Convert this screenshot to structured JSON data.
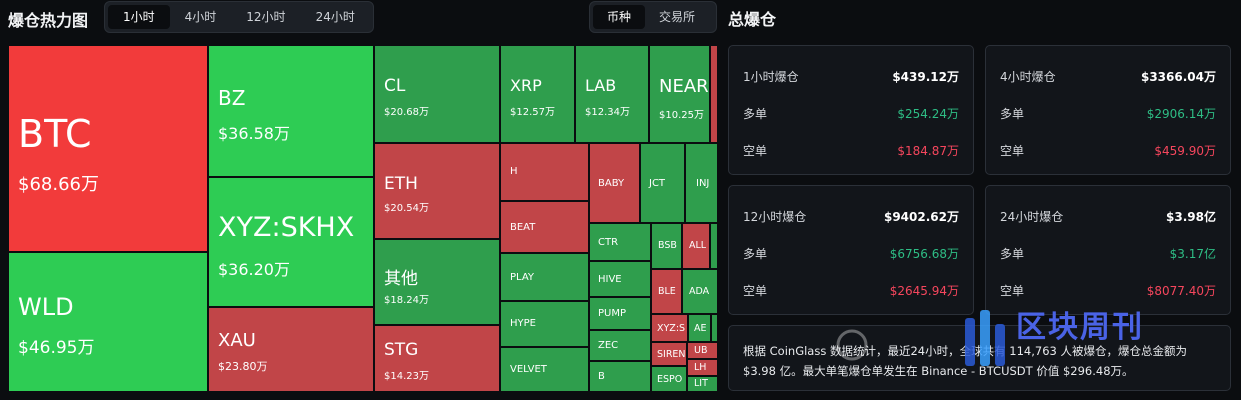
{
  "header": {
    "title": "爆仓热力图",
    "time_tabs": [
      "1小时",
      "4小时",
      "12小时",
      "24小时"
    ],
    "group_tabs": [
      "币种",
      "交易所"
    ]
  },
  "treemap": {
    "cells": [
      {
        "name": "BTC",
        "value": "$68.66万"
      },
      {
        "name": "WLD",
        "value": "$46.95万"
      },
      {
        "name": "BZ",
        "value": "$36.58万"
      },
      {
        "name": "XYZ:SKHX",
        "value": "$36.20万"
      },
      {
        "name": "XAU",
        "value": "$23.80万"
      },
      {
        "name": "CL",
        "value": "$20.68万"
      },
      {
        "name": "ETH",
        "value": "$20.54万"
      },
      {
        "name": "其他",
        "value": "$18.24万"
      },
      {
        "name": "STG",
        "value": "$14.23万"
      },
      {
        "name": "XRP",
        "value": "$12.57万"
      },
      {
        "name": "LAB",
        "value": "$12.34万"
      },
      {
        "name": "NEAR",
        "value": "$10.25万"
      },
      {
        "name": "H"
      },
      {
        "name": "BEAT"
      },
      {
        "name": "PLAY"
      },
      {
        "name": "HYPE"
      },
      {
        "name": "VELVET"
      },
      {
        "name": "BABY"
      },
      {
        "name": "JCT"
      },
      {
        "name": "INJ"
      },
      {
        "name": "CTR"
      },
      {
        "name": "HIVE"
      },
      {
        "name": "PUMP"
      },
      {
        "name": "ZEC"
      },
      {
        "name": "B"
      },
      {
        "name": "BSB"
      },
      {
        "name": "ALL"
      },
      {
        "name": "BLE"
      },
      {
        "name": "ADA"
      },
      {
        "name": "XYZ:S"
      },
      {
        "name": "AE"
      },
      {
        "name": "SIREN"
      },
      {
        "name": "UB"
      },
      {
        "name": "ESPO"
      },
      {
        "name": "LH"
      },
      {
        "name": "LIT"
      }
    ]
  },
  "summary": {
    "title": "总爆仓",
    "long_label": "多单",
    "short_label": "空单",
    "cards": [
      {
        "label": "1小时爆仓",
        "total": "$439.12万",
        "long": "$254.24万",
        "short": "$184.87万"
      },
      {
        "label": "4小时爆仓",
        "total": "$3366.04万",
        "long": "$2906.14万",
        "short": "$459.90万"
      },
      {
        "label": "12小时爆仓",
        "total": "$9402.62万",
        "long": "$6756.68万",
        "short": "$2645.94万"
      },
      {
        "label": "24小时爆仓",
        "total": "$3.98亿",
        "long": "$3.17亿",
        "short": "$8077.40万"
      }
    ],
    "note_line1": "根据 CoinGlass 数据统计，最近24小时，全球共有 114,763 人被爆仓，爆仓总金额为",
    "note_line2": "$3.98 亿。最大单笔爆仓单发生在 Binance - BTCUSDT 价值 $296.48万。"
  },
  "watermark": {
    "text": "区块周刊"
  },
  "colors": {
    "long_green": "#2ebd85",
    "short_red": "#f6465d",
    "cell_green": "#2ecc54",
    "cell_red": "#f23b3b"
  }
}
